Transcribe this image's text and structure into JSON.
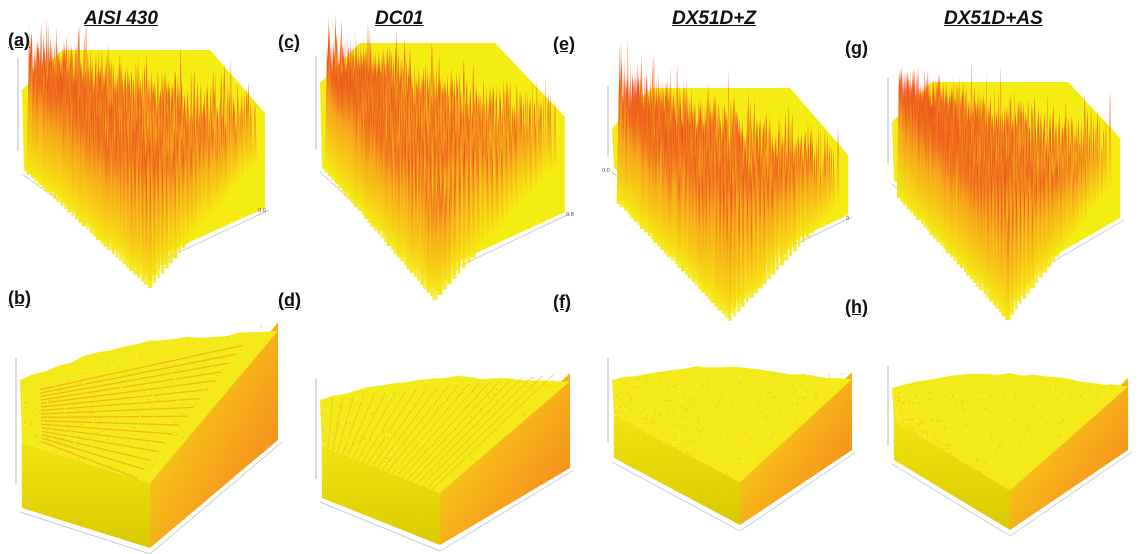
{
  "figure": {
    "materials": [
      "AISI 430",
      "DC01",
      "DX51D+Z",
      "DX51D+AS"
    ],
    "panel_labels_top": [
      "(a)",
      "(c)",
      "(e)",
      "(g)"
    ],
    "panel_labels_bottom": [
      "(b)",
      "(d)",
      "(f)",
      "(h)"
    ],
    "tick_labels": {
      "a_corner": "0.0",
      "c_corner": "0.8",
      "e_left": "0.0",
      "e_corner": "0"
    },
    "colors": {
      "yellow": "#f5ec12",
      "orange": "#f7a41c",
      "red": "#e8331a",
      "side_dark": "#d9c800"
    },
    "panels": [
      {
        "id": "a",
        "type": "rough",
        "roughness": 0.9
      },
      {
        "id": "c",
        "type": "rough",
        "roughness": 0.85
      },
      {
        "id": "e",
        "type": "rough",
        "roughness": 1.0
      },
      {
        "id": "g",
        "type": "rough",
        "roughness": 0.8
      },
      {
        "id": "b",
        "type": "smooth",
        "pattern": "striped"
      },
      {
        "id": "d",
        "type": "smooth",
        "pattern": "ridged"
      },
      {
        "id": "f",
        "type": "smooth",
        "pattern": "plain"
      },
      {
        "id": "h",
        "type": "smooth",
        "pattern": "plain"
      }
    ]
  }
}
